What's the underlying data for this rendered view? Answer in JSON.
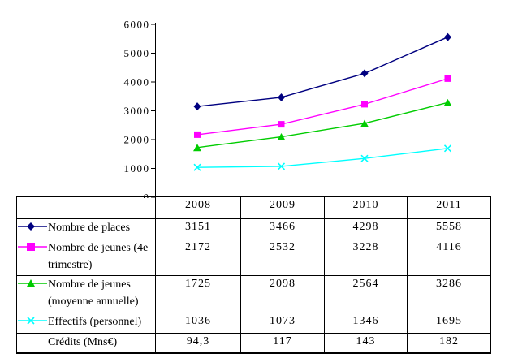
{
  "chart_data": {
    "type": "line",
    "categories": [
      "2008",
      "2009",
      "2010",
      "2011"
    ],
    "series": [
      {
        "name": "Nombre de places",
        "values": [
          3151,
          3466,
          4298,
          5558
        ],
        "color": "#000080",
        "marker": "diamond"
      },
      {
        "name": "Nombre de jeunes (4e trimestre)",
        "values": [
          2172,
          2532,
          3228,
          4116
        ],
        "color": "#FF00FF",
        "marker": "square"
      },
      {
        "name": "Nombre de jeunes (moyenne annuelle)",
        "values": [
          1725,
          2098,
          2564,
          3286
        ],
        "color": "#00CC00",
        "marker": "triangle"
      },
      {
        "name": "Effectifs (personnel)",
        "values": [
          1036,
          1073,
          1346,
          1695
        ],
        "color": "#00FFFF",
        "marker": "x"
      }
    ],
    "title": "",
    "xlabel": "",
    "ylabel": "",
    "ylim": [
      0,
      6000
    ],
    "yticks": [
      0,
      1000,
      2000,
      3000,
      4000,
      5000,
      6000
    ],
    "grid": false,
    "legend_position": "table-left-column"
  },
  "table": {
    "corner_label": "",
    "columns": [
      "2008",
      "2009",
      "2010",
      "2011"
    ],
    "rows": [
      {
        "label": "Nombre de places",
        "values": [
          "3151",
          "3466",
          "4298",
          "5558"
        ],
        "marker": "diamond"
      },
      {
        "label": "Nombre de jeunes (4e\ntrimestre)",
        "values": [
          "2172",
          "2532",
          "3228",
          "4116"
        ],
        "marker": "square"
      },
      {
        "label": "Nombre de jeunes\n(moyenne annuelle)",
        "values": [
          "1725",
          "2098",
          "2564",
          "3286"
        ],
        "marker": "triangle"
      },
      {
        "label": "Effectifs (personnel)",
        "values": [
          "1036",
          "1073",
          "1346",
          "1695"
        ],
        "marker": "x"
      },
      {
        "label": "Crédits (Mns€)",
        "values": [
          "94,3",
          "117",
          "143",
          "182"
        ],
        "marker": "none"
      }
    ]
  }
}
